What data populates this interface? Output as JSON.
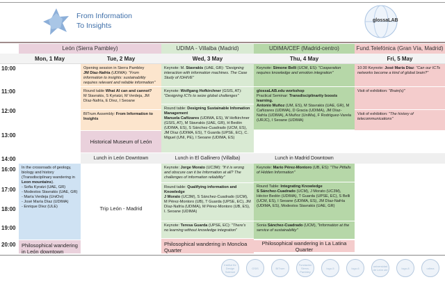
{
  "header": {
    "title_line1": "From Information",
    "title_line2": "To Insights",
    "logo_right": "glossaLAB"
  },
  "colors": {
    "leon": "#ead1dc",
    "udima_villalba": "#d9ead3",
    "udima_cef": "#b6d7a8",
    "telefonica": "#f4cccc",
    "orange": "#fce5cd",
    "blue": "#cfe2f3",
    "lunch": "#efefef"
  },
  "venues": [
    "León (Sierra Pambley)",
    "UDIMA - Villalba (Madrid)",
    "UDIMA/CEF (Madrid-centro)",
    "Fund.Telefónica (Gran Vía, Madrid)"
  ],
  "days": [
    "Mon, 1 May",
    "Tue, 2 May",
    "Wed, 3 May",
    "Thu, 4 May",
    "Fri, 5 May"
  ],
  "times": [
    "10:00",
    "11:00",
    "12:00",
    "13:00",
    "14:00",
    "16:00",
    "17:00",
    "18:00",
    "19:00",
    "20:00"
  ],
  "lunch": [
    "Lunch in León Downtown",
    "Lunch in El Gallinero (Villalba)",
    "Lunch in Madrid Downtown"
  ],
  "events": [
    {
      "lines": [
        [
          [
            "n",
            "Opening session in Sierra Pambley"
          ]
        ],
        [
          [
            "b",
            "JM Díaz-Nafría"
          ],
          [
            "n",
            " (UDIMA): "
          ],
          [
            "i",
            "\"From information to insights: sustainability requires relevant and reliable information\""
          ]
        ]
      ]
    },
    {
      "lines": [
        [
          [
            "n",
            "Round table "
          ],
          [
            "b",
            "What AI can and cannot?"
          ]
        ],
        [
          [
            "n",
            "M Stavrakis, S Kyriatzi, M Verdeja, JM Díaz-Nafría, E Díez, I Seoane"
          ]
        ]
      ]
    },
    {
      "lines": [
        [
          [
            "n",
            "BITrum Assembly: "
          ],
          [
            "b",
            "From Information to Insights"
          ]
        ]
      ]
    },
    {
      "lines": [
        [
          [
            "n",
            "Historical Museum of León"
          ]
        ]
      ]
    },
    {
      "lines": [
        [
          [
            "n",
            "Keynote: M. "
          ],
          [
            "b",
            "Stavrakis"
          ],
          [
            "n",
            " (UAE, GR): "
          ],
          [
            "i",
            "\"Designing interaction with information machines. The Case Study of IOHIVE\""
          ]
        ]
      ]
    },
    {
      "lines": [
        [
          [
            "n",
            "Keynote: "
          ],
          [
            "b",
            "Wolfgang Hofkirchner"
          ],
          [
            "n",
            " (GSIS, AT): "
          ],
          [
            "i",
            "\"Designing ICTs to seize global challenges\""
          ]
        ]
      ]
    },
    {
      "lines": [
        [
          [
            "n",
            "Round table: "
          ],
          [
            "b",
            "Designing Sustainable Infomation Management"
          ]
        ],
        [
          [
            "b",
            "Manuela Cañizares"
          ],
          [
            "n",
            " (UDIMA, ES), W Hofkirchner (GSIS, AT), M Stavrakis (UAE, GR), H Bedón (UDIMA, ES), S Sánchez-Cuadrado (UCM, ES), JM Díaz (UDIMA, ES), T Guarda (UPSE, EC), C. Miguel (UNI, PE), I Seoane (UDIMA, ES)"
          ]
        ]
      ]
    },
    {
      "lines": [
        [
          [
            "n",
            "Keynote: "
          ],
          [
            "b",
            "Simone Belli"
          ],
          [
            "n",
            " (UCM, ES): "
          ],
          [
            "i",
            "\"Cooperation requires knowledge and emotion integration\""
          ]
        ]
      ]
    },
    {
      "lines": [
        [
          [
            "b",
            "glossaLAB.edu workshop"
          ]
        ],
        [
          [
            "n",
            " "
          ]
        ],
        [
          [
            "n",
            "Practical Seminar: "
          ],
          [
            "b",
            "Transdisciplinarity boosts learning."
          ]
        ],
        [
          [
            "b",
            "Antonio Muñoz"
          ],
          [
            "n",
            " (UM, ES), M Stavrakis (UAE, GR), M Cañizares (UDIMA), D Gracia (UDIMA), JM Díaz-Nafría (UDIMA), A Muñoz (UniMa), F Rodríguez-Varela (URJC), I Seoane (UDIMA)"
          ]
        ]
      ]
    },
    {
      "lines": [
        [
          [
            "n",
            "10:30 Keynote: "
          ],
          [
            "b",
            "José María Díaz"
          ],
          [
            "n",
            ": "
          ],
          [
            "i",
            "\"Can our ICTs networks become a kind of global brain?\""
          ]
        ]
      ]
    },
    {
      "lines": [
        [
          [
            "n",
            "Visit of exhibition: "
          ],
          [
            "i",
            "\"Brain(s)\""
          ]
        ]
      ]
    },
    {
      "lines": [
        [
          [
            "n",
            "Visit of exhibition: "
          ],
          [
            "i",
            "\"The history of telecommunications\""
          ]
        ]
      ]
    },
    {
      "lines": [
        [
          [
            "n",
            "In the crossroads of geology, biology and history (Transdisciplinary wandering in "
          ],
          [
            "b",
            "Leon mountains"
          ],
          [
            "n",
            ")."
          ]
        ],
        [
          [
            "n",
            "- Sofia Kyratzi (UAE, GR)"
          ]
        ],
        [
          [
            "n",
            "- Modestos Stavrakis (UAE, GR)"
          ]
        ],
        [
          [
            "n",
            "- María Verdeja (UniOvi)"
          ]
        ],
        [
          [
            "n",
            "- José María Díaz (UDIMA)"
          ]
        ],
        [
          [
            "n",
            "- Enrique Díez (ULE)"
          ]
        ]
      ]
    },
    {
      "lines": [
        [
          [
            "n",
            "Philosophical wandering in León downtown"
          ]
        ]
      ]
    },
    {
      "lines": [
        [
          [
            "n",
            "Trip León - Madrid"
          ]
        ]
      ]
    },
    {
      "lines": [
        [
          [
            "n",
            "Keynote: "
          ],
          [
            "b",
            "Jorge Morato"
          ],
          [
            "n",
            " (UC3M): "
          ],
          [
            "i",
            "\"If it is wrong and obscure can it be Information at all? The challenges of information reliability\""
          ]
        ]
      ]
    },
    {
      "lines": [
        [
          [
            "n",
            "Round table: "
          ],
          [
            "b",
            "Qualifying information and Knowledge"
          ]
        ],
        [
          [
            "b",
            "J Morato"
          ],
          [
            "n",
            " (UC3M), S Sánchez-Cuadrado (UCM), M Pérez-Montoro (UB), T Guarda (UPSE, EC), JM Díaz-Nafría (UDIMA), M Pérez-Montoro (UB, ES), I. Seoane (UDIMA)"
          ]
        ]
      ]
    },
    {
      "lines": [
        [
          [
            "n",
            "Keynote: "
          ],
          [
            "b",
            "Teresa Guarda"
          ],
          [
            "n",
            " (UPSE, EC): "
          ],
          [
            "i",
            "\"There's no learning without knowledge integration\""
          ]
        ]
      ]
    },
    {
      "lines": [
        [
          [
            "n",
            "Philosophical wandering in Moncloa Quarter"
          ]
        ]
      ]
    },
    {
      "lines": [
        [
          [
            "n",
            "Keynote: "
          ],
          [
            "b",
            "Mario Pérez-Montoro"
          ],
          [
            "n",
            " (UB, ES): "
          ],
          [
            "i",
            "\"The Pitfalls of Hidden Information\""
          ]
        ]
      ]
    },
    {
      "lines": [
        [
          [
            "n",
            "Round Table: "
          ],
          [
            "b",
            "Integrating Knowledge"
          ]
        ],
        [
          [
            "b",
            "S Sánchez-Cuadrado"
          ],
          [
            "n",
            " (UCM), J Morato (UC3M), Héctor Bedón (UDIMA), T Guarda (UPSE, EC), S Belli (UCM, ES), I Seoane (UDIMA, ES), JM Díaz-Nafría (UDIMA, ES), Modestos Stavrakis (UAE, GR)"
          ]
        ]
      ]
    },
    {
      "lines": [
        [
          [
            "n",
            "Sonia "
          ],
          [
            "b",
            "Sánchez-Cuadrado"
          ],
          [
            "n",
            " (UCM), "
          ],
          [
            "i",
            "\"Information at the service of sustainability\""
          ]
        ]
      ]
    },
    {
      "lines": [
        [
          [
            "n",
            "Philosophical wandering in La Latina Quarter"
          ]
        ]
      ]
    }
  ],
  "footer_logos": [
    "Institut für Design Science",
    "GSIS",
    "BITrum",
    "Fundación Sierra-Pambley",
    "logo-5",
    "logo-6",
    "universidad de León ule",
    "logo-8",
    "udima"
  ]
}
